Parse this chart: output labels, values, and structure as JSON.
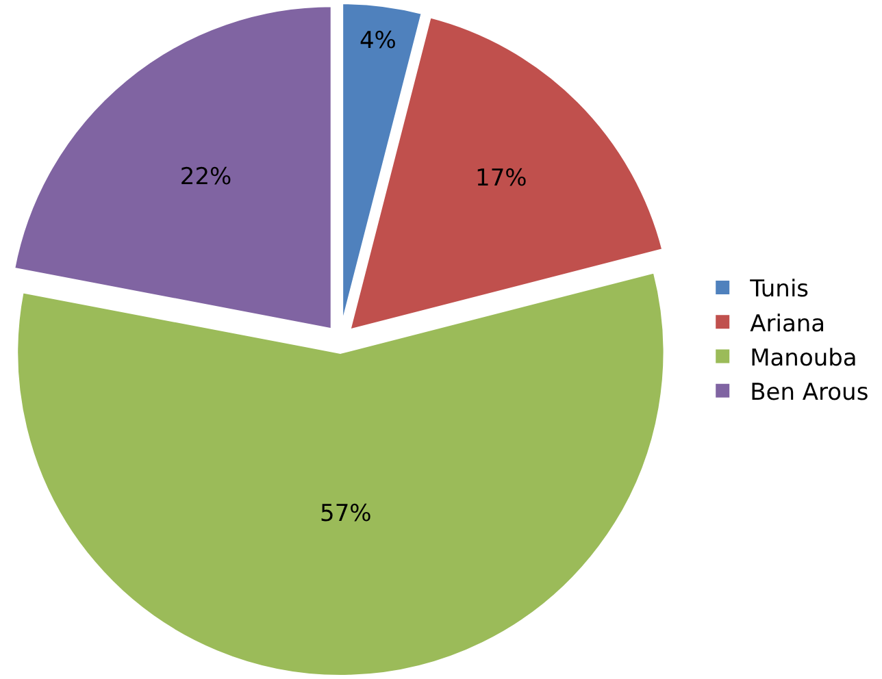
{
  "chart_data": {
    "type": "pie",
    "categories": [
      "Tunis",
      "Ariana",
      "Manouba",
      "Ben Arous"
    ],
    "values": [
      4,
      17,
      57,
      22
    ],
    "colors": [
      "#4f81bd",
      "#c0504d",
      "#9bbb59",
      "#8064a2"
    ],
    "value_labels": [
      "4%",
      "17%",
      "57%",
      "22%"
    ],
    "legend": "right"
  }
}
